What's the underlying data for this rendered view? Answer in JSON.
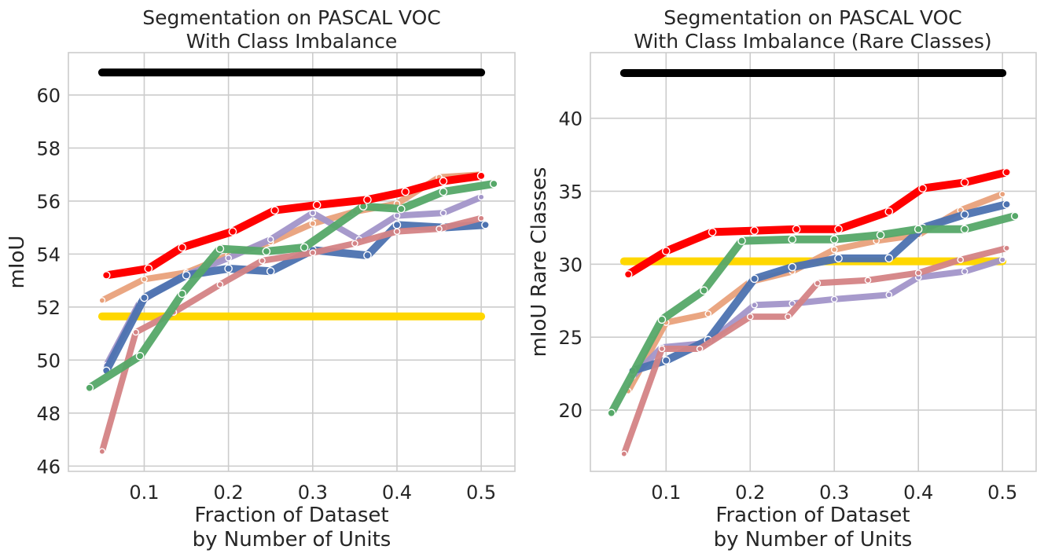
{
  "chart_data": [
    {
      "type": "line",
      "title": "Segmentation on PASCAL VOC\nWith Class Imbalance",
      "xlabel": "Fraction of Dataset\nby Number of Units",
      "ylabel": "mIoU",
      "xlim": [
        0.01,
        0.54
      ],
      "ylim": [
        45.8,
        61.6
      ],
      "xticks": [
        0.1,
        0.2,
        0.3,
        0.4,
        0.5
      ],
      "xtick_labels": [
        "0.1",
        "0.2",
        "0.3",
        "0.4",
        "0.5"
      ],
      "yticks": [
        46,
        48,
        50,
        52,
        54,
        56,
        58,
        60
      ],
      "ytick_labels": [
        "46",
        "48",
        "50",
        "52",
        "54",
        "56",
        "58",
        "60"
      ],
      "grid": true,
      "series": [
        {
          "name": "yellow",
          "color": "#ffd700",
          "width": 10,
          "markers": false,
          "x": [
            0.05,
            0.5
          ],
          "y": [
            51.65,
            51.65
          ]
        },
        {
          "name": "black",
          "color": "#000000",
          "width": 10,
          "markers": false,
          "x": [
            0.05,
            0.5
          ],
          "y": [
            60.85,
            60.85
          ]
        },
        {
          "name": "orange",
          "color": "#e9a17b",
          "width": 8,
          "markers": true,
          "x": [
            0.05,
            0.1,
            0.15,
            0.2,
            0.25,
            0.3,
            0.35,
            0.4,
            0.45,
            0.5
          ],
          "y": [
            52.25,
            53.05,
            53.3,
            53.95,
            54.45,
            55.15,
            55.6,
            55.9,
            56.9,
            57.0
          ]
        },
        {
          "name": "purple",
          "color": "#a295c9",
          "width": 8,
          "markers": true,
          "x": [
            0.055,
            0.095,
            0.145,
            0.2,
            0.25,
            0.3,
            0.355,
            0.4,
            0.455,
            0.5
          ],
          "y": [
            49.8,
            52.2,
            53.15,
            53.85,
            54.55,
            55.55,
            54.55,
            55.45,
            55.55,
            56.15
          ]
        },
        {
          "name": "blue",
          "color": "#4c72b0",
          "width": 10,
          "markers": true,
          "x": [
            0.055,
            0.1,
            0.15,
            0.2,
            0.25,
            0.3,
            0.365,
            0.4,
            0.455,
            0.505
          ],
          "y": [
            49.6,
            52.35,
            53.2,
            53.45,
            53.35,
            54.15,
            53.95,
            55.1,
            55.0,
            55.1
          ]
        },
        {
          "name": "rose",
          "color": "#d48385",
          "width": 8,
          "markers": true,
          "x": [
            0.05,
            0.09,
            0.135,
            0.19,
            0.24,
            0.3,
            0.35,
            0.4,
            0.45,
            0.5
          ],
          "y": [
            46.55,
            51.05,
            51.8,
            52.85,
            53.75,
            54.05,
            54.4,
            54.85,
            54.95,
            55.35
          ]
        },
        {
          "name": "green",
          "color": "#55a868",
          "width": 10,
          "markers": true,
          "x": [
            0.035,
            0.095,
            0.145,
            0.19,
            0.245,
            0.29,
            0.36,
            0.405,
            0.455,
            0.515
          ],
          "y": [
            48.95,
            50.15,
            52.5,
            54.2,
            54.1,
            54.25,
            55.8,
            55.7,
            56.35,
            56.65
          ]
        },
        {
          "name": "red",
          "color": "#ff0000",
          "width": 10,
          "markers": true,
          "x": [
            0.055,
            0.105,
            0.145,
            0.205,
            0.255,
            0.305,
            0.365,
            0.41,
            0.455,
            0.5
          ],
          "y": [
            53.2,
            53.45,
            54.25,
            54.85,
            55.65,
            55.85,
            56.05,
            56.35,
            56.75,
            56.95
          ]
        }
      ]
    },
    {
      "type": "line",
      "title": "Segmentation on PASCAL VOC\nWith Class Imbalance (Rare Classes)",
      "xlabel": "Fraction of Dataset\nby Number of Units",
      "ylabel": "mIoU Rare Classes",
      "xlim": [
        0.01,
        0.54
      ],
      "ylim": [
        15.8,
        44.5
      ],
      "xticks": [
        0.1,
        0.2,
        0.3,
        0.4,
        0.5
      ],
      "xtick_labels": [
        "0.1",
        "0.2",
        "0.3",
        "0.4",
        "0.5"
      ],
      "yticks": [
        20,
        25,
        30,
        35,
        40
      ],
      "ytick_labels": [
        "20",
        "25",
        "30",
        "35",
        "40"
      ],
      "grid": true,
      "series": [
        {
          "name": "yellow",
          "color": "#ffd700",
          "width": 10,
          "markers": false,
          "x": [
            0.05,
            0.5
          ],
          "y": [
            30.2,
            30.2
          ]
        },
        {
          "name": "black",
          "color": "#000000",
          "width": 10,
          "markers": false,
          "x": [
            0.05,
            0.5
          ],
          "y": [
            43.1,
            43.1
          ]
        },
        {
          "name": "orange",
          "color": "#e9a17b",
          "width": 8,
          "markers": true,
          "x": [
            0.055,
            0.1,
            0.15,
            0.2,
            0.25,
            0.3,
            0.35,
            0.4,
            0.45,
            0.5
          ],
          "y": [
            21.3,
            26.0,
            26.6,
            28.8,
            29.5,
            31.0,
            31.6,
            32.0,
            33.7,
            34.8
          ]
        },
        {
          "name": "purple",
          "color": "#a295c9",
          "width": 8,
          "markers": true,
          "x": [
            0.06,
            0.095,
            0.15,
            0.205,
            0.25,
            0.3,
            0.365,
            0.4,
            0.455,
            0.5
          ],
          "y": [
            22.3,
            24.3,
            24.6,
            27.2,
            27.3,
            27.6,
            27.9,
            29.1,
            29.5,
            30.3
          ]
        },
        {
          "name": "blue",
          "color": "#4c72b0",
          "width": 10,
          "markers": true,
          "x": [
            0.06,
            0.1,
            0.15,
            0.205,
            0.25,
            0.305,
            0.365,
            0.405,
            0.455,
            0.505
          ],
          "y": [
            22.7,
            23.4,
            24.8,
            29.0,
            29.8,
            30.4,
            30.4,
            32.5,
            33.4,
            34.1
          ]
        },
        {
          "name": "rose",
          "color": "#d48385",
          "width": 8,
          "markers": true,
          "x": [
            0.05,
            0.095,
            0.14,
            0.2,
            0.245,
            0.28,
            0.34,
            0.4,
            0.45,
            0.505
          ],
          "y": [
            17.0,
            24.2,
            24.2,
            26.4,
            26.4,
            28.7,
            28.9,
            29.4,
            30.3,
            31.1
          ]
        },
        {
          "name": "green",
          "color": "#55a868",
          "width": 10,
          "markers": true,
          "x": [
            0.035,
            0.095,
            0.145,
            0.19,
            0.25,
            0.3,
            0.355,
            0.4,
            0.455,
            0.515
          ],
          "y": [
            19.8,
            26.2,
            28.2,
            31.6,
            31.7,
            31.7,
            32.0,
            32.4,
            32.4,
            33.3
          ]
        },
        {
          "name": "red",
          "color": "#ff0000",
          "width": 10,
          "markers": true,
          "x": [
            0.055,
            0.1,
            0.155,
            0.205,
            0.255,
            0.305,
            0.365,
            0.405,
            0.455,
            0.505
          ],
          "y": [
            29.3,
            30.9,
            32.2,
            32.3,
            32.4,
            32.4,
            33.6,
            35.2,
            35.6,
            36.3
          ]
        }
      ]
    }
  ]
}
